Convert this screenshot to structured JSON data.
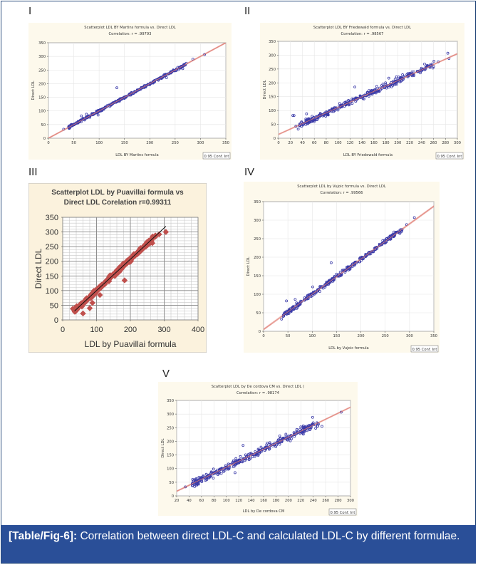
{
  "caption": {
    "label": "[Table/Fig-6]:",
    "text": " Correlation between direct LDL-C and calculated LDL-C by different formulae."
  },
  "chart_data": [
    {
      "id": "I",
      "panel_label": "I",
      "type": "scatter",
      "style": "statistica",
      "title_line1": "Scatterplot LDL BY Martins formula  vs. Direct LDL",
      "title_line2": "Correlation: r = .99793",
      "xlabel": "LDL BY Martins formula",
      "ylabel": "Direct LDL",
      "xlim": [
        0,
        350
      ],
      "ylim": [
        0,
        350
      ],
      "xticks": [
        0,
        50,
        100,
        150,
        200,
        250,
        300,
        350
      ],
      "yticks": [
        0,
        50,
        100,
        150,
        200,
        250,
        300,
        350
      ],
      "grid": true,
      "legend": "0.95 Conf. Int",
      "legend_position": "bottom-right",
      "fit_line": {
        "slope": 1.0,
        "intercept": 0
      },
      "point_color": "#3a3aa8",
      "line_color": "#e07a70",
      "highlight_points": [
        [
          30,
          33
        ],
        [
          135,
          185
        ],
        [
          98,
          85
        ],
        [
          65,
          82
        ],
        [
          75,
          88
        ],
        [
          233,
          222
        ],
        [
          265,
          255
        ],
        [
          285,
          290
        ],
        [
          308,
          307
        ],
        [
          272,
          275
        ],
        [
          270,
          268
        ]
      ],
      "seed": 11,
      "n": 320,
      "x_range": [
        40,
        270
      ],
      "noise": 3
    },
    {
      "id": "II",
      "panel_label": "II",
      "type": "scatter",
      "style": "statistica",
      "title_line1": "Scatterplot LDL BY Friedewald formula  vs. Direct LDL",
      "title_line2": "Correlation: r = .98567",
      "xlabel": "LDL BY Friedewald formula",
      "ylabel": "Direct LDL",
      "xlim": [
        0,
        300
      ],
      "ylim": [
        0,
        350
      ],
      "xticks": [
        0,
        20,
        40,
        60,
        80,
        100,
        120,
        140,
        160,
        180,
        200,
        220,
        240,
        260,
        280,
        300
      ],
      "yticks": [
        0,
        50,
        100,
        150,
        200,
        250,
        300,
        350
      ],
      "grid": true,
      "legend": "0.95 Conf. Int",
      "legend_position": "bottom-right",
      "fit_line": {
        "slope": 0.97,
        "intercept": 14
      },
      "point_color": "#3a3aa8",
      "line_color": "#e07a70",
      "highlight_points": [
        [
          24,
          82
        ],
        [
          26,
          82
        ],
        [
          29,
          43
        ],
        [
          33,
          33
        ],
        [
          47,
          88
        ],
        [
          128,
          185
        ],
        [
          185,
          217
        ],
        [
          198,
          222
        ],
        [
          245,
          268
        ],
        [
          284,
          307
        ],
        [
          286,
          288
        ],
        [
          268,
          276
        ]
      ],
      "seed": 23,
      "n": 320,
      "x_range": [
        35,
        262
      ],
      "noise": 8
    },
    {
      "id": "III",
      "panel_label": "III",
      "type": "scatter",
      "style": "excel",
      "title_line1": "Scatterplot  LDL by Puavillai  formula vs",
      "title_line2": "Direct LDL   Corelation r=0.99311",
      "xlabel": "LDL by Puavillai  formula",
      "ylabel": "Direct LDL",
      "xlim": [
        0,
        400
      ],
      "ylim": [
        0,
        350
      ],
      "xticks": [
        0,
        100,
        200,
        300,
        400
      ],
      "yticks": [
        0,
        50,
        100,
        150,
        200,
        250,
        300,
        350
      ],
      "grid": true,
      "fit_line": {
        "slope": 1.07,
        "intercept": -7,
        "x_from": 35,
        "x_to": 305
      },
      "point_color": "#c0504d",
      "line_color": "#111111",
      "highlight_points": [
        [
          30,
          38
        ],
        [
          60,
          22
        ],
        [
          80,
          40
        ],
        [
          88,
          58
        ],
        [
          183,
          135
        ],
        [
          305,
          300
        ],
        [
          285,
          292
        ],
        [
          265,
          262
        ],
        [
          110,
          85
        ]
      ],
      "seed": 37,
      "n": 300,
      "x_range": [
        35,
        275
      ],
      "noise": 5
    },
    {
      "id": "IV",
      "panel_label": "IV",
      "type": "scatter",
      "style": "statistica",
      "title_line1": "Scatterplot LDL by Vujoic formula   vs. Direct LDL",
      "title_line2": "Correlation: r = .99566",
      "xlabel": "LDL by Vujoic formula",
      "ylabel": "Direct LDL",
      "xlim": [
        0,
        350
      ],
      "ylim": [
        0,
        350
      ],
      "xticks": [
        0,
        50,
        100,
        150,
        200,
        250,
        300,
        350
      ],
      "yticks": [
        0,
        50,
        100,
        150,
        200,
        250,
        300,
        350
      ],
      "grid": true,
      "legend": "0.95 Conf. Int",
      "legend_position": "bottom-right",
      "fit_line": {
        "slope": 0.95,
        "intercept": 5
      },
      "point_color": "#3a3aa8",
      "line_color": "#e07a70",
      "highlight_points": [
        [
          37,
          33
        ],
        [
          47,
          82
        ],
        [
          65,
          86
        ],
        [
          139,
          185
        ],
        [
          101,
          120
        ],
        [
          310,
          307
        ],
        [
          294,
          288
        ],
        [
          268,
          268
        ],
        [
          245,
          245
        ]
      ],
      "seed": 51,
      "n": 320,
      "x_range": [
        40,
        285
      ],
      "noise": 4
    },
    {
      "id": "V",
      "panel_label": "V",
      "type": "scatter",
      "style": "statistica",
      "title_line1": "Scatterplot LDL by De cordova CM   vs. Direct LDL (",
      "title_line2": "Correlation: r = .98174",
      "xlabel": "LDL by De cordova CM",
      "ylabel": "Direct LDL",
      "xlim": [
        20,
        300
      ],
      "ylim": [
        0,
        350
      ],
      "xticks": [
        20,
        40,
        60,
        80,
        100,
        120,
        140,
        160,
        180,
        200,
        220,
        240,
        260,
        280,
        300
      ],
      "yticks": [
        0,
        50,
        100,
        150,
        200,
        250,
        300,
        350
      ],
      "grid": true,
      "legend": "0.95 Conf. Int",
      "legend_position": "bottom-right",
      "fit_line": {
        "slope": 1.1,
        "intercept": -5
      },
      "point_color": "#3a3aa8",
      "line_color": "#e07a70",
      "highlight_points": [
        [
          34,
          33
        ],
        [
          127,
          185
        ],
        [
          114,
          85
        ],
        [
          239,
          288
        ],
        [
          254,
          255
        ],
        [
          285,
          307
        ],
        [
          240,
          268
        ],
        [
          220,
          253
        ],
        [
          186,
          220
        ]
      ],
      "seed": 67,
      "n": 320,
      "x_range": [
        45,
        250
      ],
      "noise": 9
    }
  ]
}
